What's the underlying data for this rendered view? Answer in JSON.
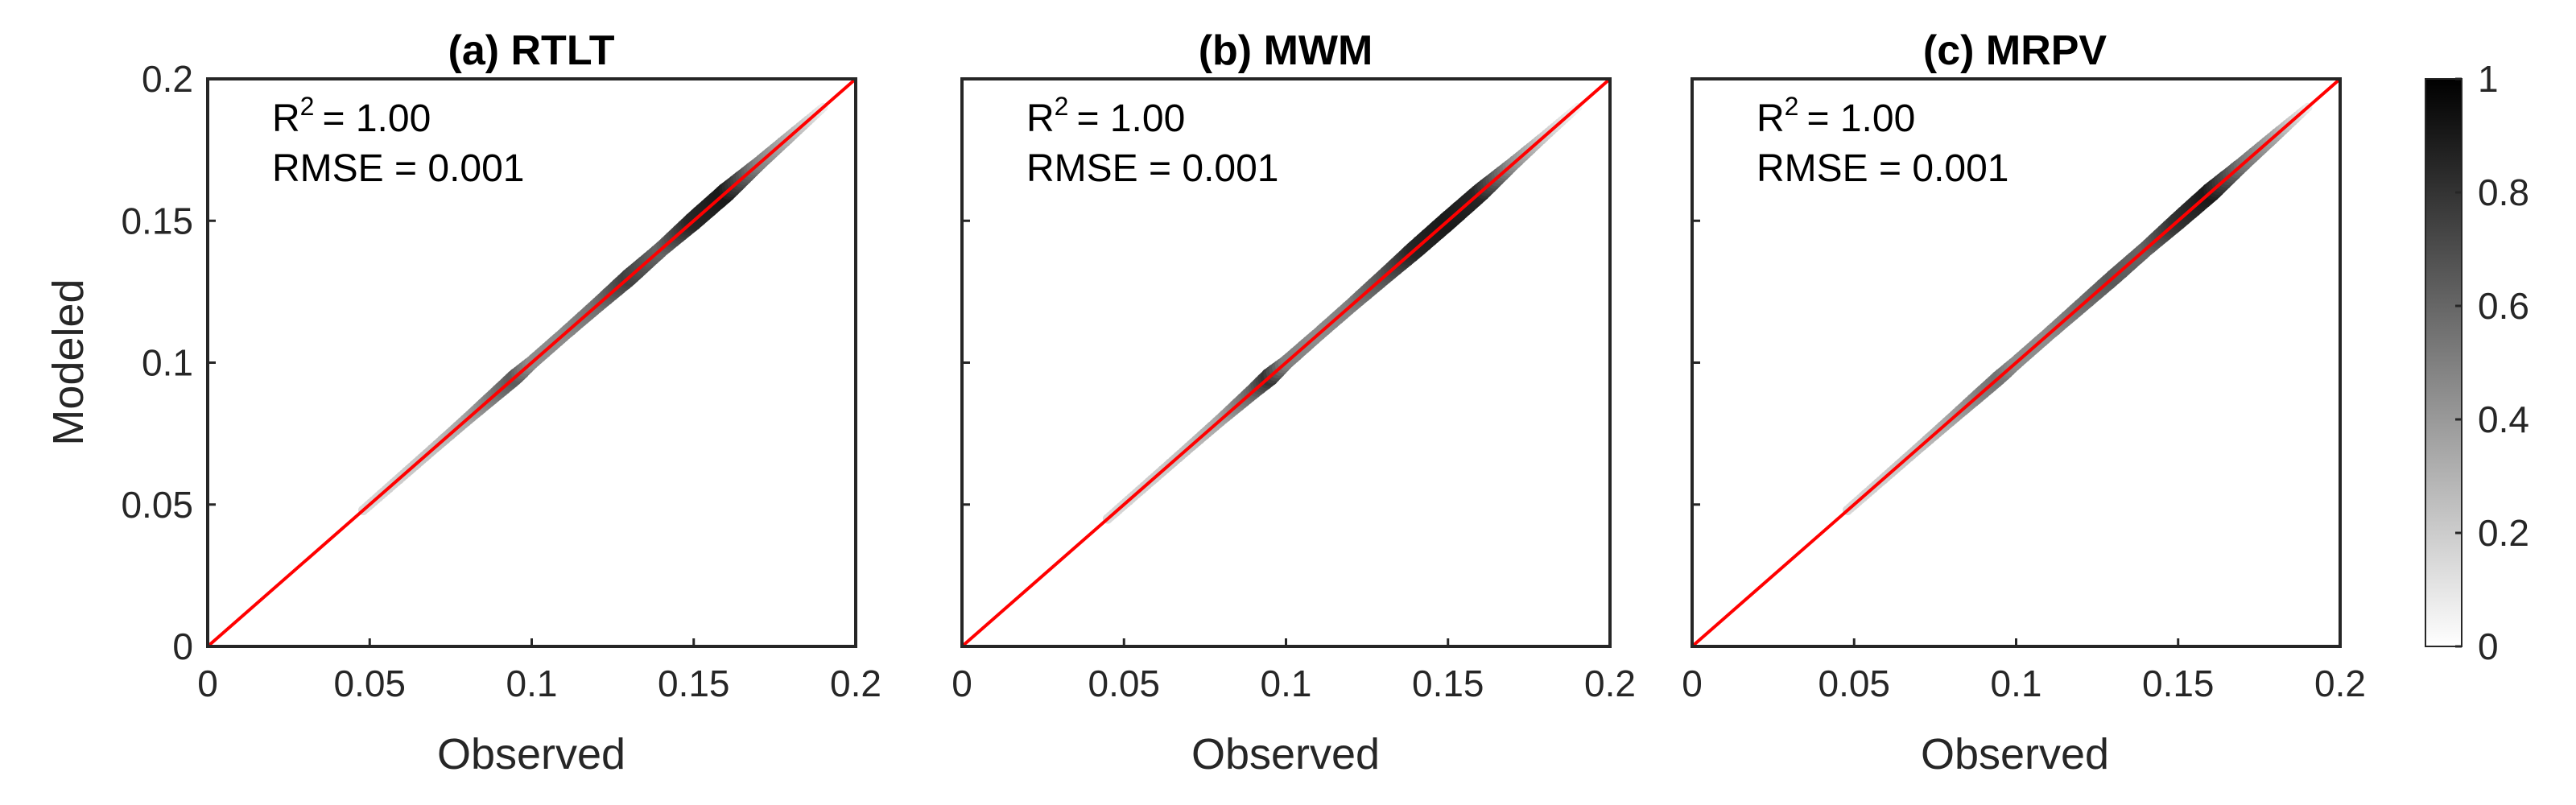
{
  "chart_data": [
    {
      "type": "scatter",
      "title": "(a) RTLT",
      "xlabel": "Observed",
      "ylabel": "Modeled",
      "xlim": [
        0,
        0.2
      ],
      "ylim": [
        0,
        0.2
      ],
      "xticks": [
        "0",
        "0.05",
        "0.1",
        "0.15",
        "0.2"
      ],
      "yticks": [
        "0",
        "0.05",
        "0.1",
        "0.15",
        "0.2"
      ],
      "grid": false,
      "stats": {
        "r2_label": "R",
        "r2_sup": "2",
        "r2_value": "= 1.00",
        "rmse": "RMSE = 0.001"
      },
      "reference_line": {
        "x": [
          0,
          0.2
        ],
        "y": [
          0,
          0.2
        ],
        "color": "#ff0000"
      },
      "density_profile": {
        "x": [
          0.048,
          0.06,
          0.07,
          0.08,
          0.09,
          0.095,
          0.1,
          0.11,
          0.12,
          0.13,
          0.14,
          0.15,
          0.16,
          0.17,
          0.18,
          0.19
        ],
        "density": [
          0.15,
          0.2,
          0.25,
          0.35,
          0.55,
          0.65,
          0.45,
          0.45,
          0.55,
          0.75,
          0.6,
          0.85,
          0.9,
          0.5,
          0.3,
          0.08
        ]
      }
    },
    {
      "type": "scatter",
      "title": "(b) MWM",
      "xlabel": "Observed",
      "xlim": [
        0,
        0.2
      ],
      "ylim": [
        0,
        0.2
      ],
      "xticks": [
        "0",
        "0.05",
        "0.1",
        "0.15",
        "0.2"
      ],
      "grid": false,
      "stats": {
        "r2_label": "R",
        "r2_sup": "2",
        "r2_value": "= 1.00",
        "rmse": "RMSE = 0.001"
      },
      "reference_line": {
        "x": [
          0,
          0.2
        ],
        "y": [
          0,
          0.2
        ],
        "color": "#ff0000"
      },
      "density_profile": {
        "x": [
          0.045,
          0.06,
          0.07,
          0.08,
          0.09,
          0.095,
          0.1,
          0.11,
          0.12,
          0.13,
          0.14,
          0.15,
          0.16,
          0.17,
          0.18,
          0.19
        ],
        "density": [
          0.15,
          0.2,
          0.25,
          0.35,
          0.6,
          0.8,
          0.5,
          0.45,
          0.5,
          0.65,
          0.85,
          0.9,
          0.85,
          0.45,
          0.2,
          0.05
        ]
      }
    },
    {
      "type": "scatter",
      "title": "(c) MRPV",
      "xlabel": "Observed",
      "xlim": [
        0,
        0.2
      ],
      "ylim": [
        0,
        0.2
      ],
      "xticks": [
        "0",
        "0.05",
        "0.1",
        "0.15",
        "0.2"
      ],
      "grid": false,
      "stats": {
        "r2_label": "R",
        "r2_sup": "2",
        "r2_value": "= 1.00",
        "rmse": "RMSE = 0.001"
      },
      "reference_line": {
        "x": [
          0,
          0.2
        ],
        "y": [
          0,
          0.2
        ],
        "color": "#ff0000"
      },
      "density_profile": {
        "x": [
          0.048,
          0.06,
          0.07,
          0.08,
          0.09,
          0.095,
          0.1,
          0.11,
          0.12,
          0.13,
          0.14,
          0.15,
          0.16,
          0.17,
          0.18,
          0.19
        ],
        "density": [
          0.15,
          0.2,
          0.25,
          0.35,
          0.5,
          0.55,
          0.45,
          0.45,
          0.55,
          0.65,
          0.6,
          0.8,
          0.9,
          0.55,
          0.35,
          0.08
        ]
      }
    }
  ],
  "colorbar": {
    "range": [
      0,
      1
    ],
    "ticks": [
      "0",
      "0.2",
      "0.4",
      "0.6",
      "0.8",
      "1"
    ],
    "colors": [
      "#ffffff",
      "#000000"
    ]
  }
}
